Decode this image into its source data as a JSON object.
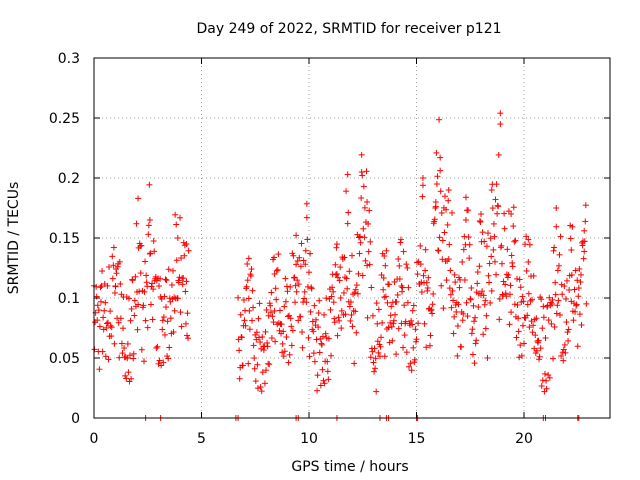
{
  "chart_data": {
    "type": "scatter",
    "title": "Day 249 of 2022, SRMTID for receiver p121",
    "xlabel": "GPS time / hours",
    "ylabel": "SRMTID / TECUs",
    "xlim": [
      0,
      24
    ],
    "ylim": [
      0,
      0.3
    ],
    "x_ticks": [
      {
        "value": 0,
        "label": "0"
      },
      {
        "value": 5,
        "label": "5"
      },
      {
        "value": 10,
        "label": "10"
      },
      {
        "value": 15,
        "label": "15"
      },
      {
        "value": 20,
        "label": "20"
      }
    ],
    "y_ticks": [
      {
        "value": 0,
        "label": "0"
      },
      {
        "value": 0.05,
        "label": "0.05"
      },
      {
        "value": 0.1,
        "label": "0.1"
      },
      {
        "value": 0.15,
        "label": "0.15"
      },
      {
        "value": 0.2,
        "label": "0.2"
      },
      {
        "value": 0.25,
        "label": "0.25"
      },
      {
        "value": 0.3,
        "label": "0.3"
      }
    ],
    "grid": true,
    "marker": "plus",
    "color": "#ff0000",
    "series": [
      {
        "name": "SRMTID",
        "segments": [
          {
            "x_start": 0.0,
            "x_end": 4.4,
            "step": 0.025,
            "base": 0.07,
            "amplitude": 0.04
          },
          {
            "x_start": 6.7,
            "x_end": 22.9,
            "step": 0.025,
            "base": 0.065,
            "amplitude": 0.04
          }
        ],
        "peaks": [
          {
            "x": 1.0,
            "y": 0.11
          },
          {
            "x": 2.05,
            "y": 0.183
          },
          {
            "x": 2.6,
            "y": 0.165
          },
          {
            "x": 3.9,
            "y": 0.15
          },
          {
            "x": 4.3,
            "y": 0.145
          },
          {
            "x": 7.2,
            "y": 0.133
          },
          {
            "x": 8.4,
            "y": 0.12
          },
          {
            "x": 9.4,
            "y": 0.128
          },
          {
            "x": 9.9,
            "y": 0.167
          },
          {
            "x": 11.3,
            "y": 0.12
          },
          {
            "x": 11.8,
            "y": 0.162
          },
          {
            "x": 12.45,
            "y": 0.205
          },
          {
            "x": 12.7,
            "y": 0.18
          },
          {
            "x": 13.5,
            "y": 0.135
          },
          {
            "x": 14.3,
            "y": 0.11
          },
          {
            "x": 15.3,
            "y": 0.2
          },
          {
            "x": 15.9,
            "y": 0.18
          },
          {
            "x": 16.1,
            "y": 0.217
          },
          {
            "x": 16.5,
            "y": 0.19
          },
          {
            "x": 17.3,
            "y": 0.165
          },
          {
            "x": 18.0,
            "y": 0.17
          },
          {
            "x": 18.5,
            "y": 0.19
          },
          {
            "x": 18.9,
            "y": 0.254
          },
          {
            "x": 19.4,
            "y": 0.17
          },
          {
            "x": 20.2,
            "y": 0.13
          },
          {
            "x": 21.5,
            "y": 0.175
          },
          {
            "x": 22.2,
            "y": 0.14
          },
          {
            "x": 22.8,
            "y": 0.156
          }
        ]
      },
      {
        "name": "zero markers",
        "points": [
          [
            2.4,
            0
          ],
          [
            3.1,
            0
          ],
          [
            6.6,
            0
          ],
          [
            6.7,
            0
          ],
          [
            9.4,
            0
          ],
          [
            9.5,
            0
          ],
          [
            11.3,
            0
          ],
          [
            13.3,
            0
          ],
          [
            13.6,
            0
          ],
          [
            13.7,
            0
          ],
          [
            15.0,
            0
          ],
          [
            15.05,
            0
          ],
          [
            20.9,
            0
          ],
          [
            21.0,
            0
          ],
          [
            22.5,
            0
          ],
          [
            22.55,
            0
          ]
        ]
      }
    ]
  }
}
